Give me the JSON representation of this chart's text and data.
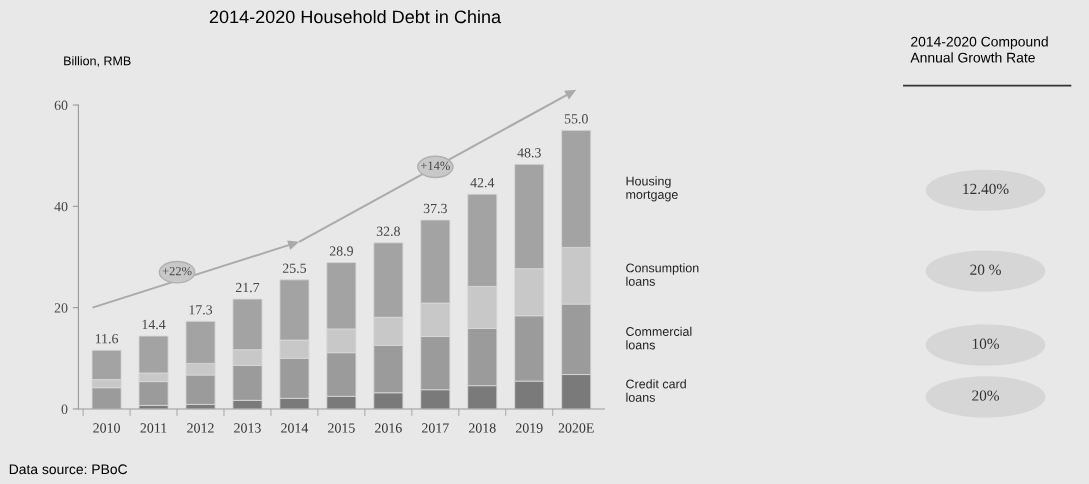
{
  "chart_data": {
    "type": "bar",
    "stacked": true,
    "title": "2014-2020 Household Debt in China",
    "ylabel": "Billion, RMB",
    "categories": [
      "2010",
      "2011",
      "2012",
      "2013",
      "2014",
      "2015",
      "2016",
      "2017",
      "2018",
      "2019",
      "2020E"
    ],
    "series": [
      {
        "name": "Credit card\nloans",
        "color": "#7a7a7a",
        "values": [
          0,
          0.7,
          0.9,
          1.7,
          2.1,
          2.5,
          3.2,
          3.8,
          4.6,
          5.5,
          6.8
        ]
      },
      {
        "name": "Commercial\nloans",
        "color": "#9b9b9b",
        "values": [
          4.2,
          4.7,
          5.8,
          6.9,
          7.9,
          8.6,
          9.4,
          10.5,
          11.3,
          12.9,
          13.9
        ]
      },
      {
        "name": "Consumption\nloans",
        "color": "#c8c8c8",
        "values": [
          1.6,
          1.7,
          2.3,
          3.1,
          3.6,
          4.7,
          5.5,
          6.6,
          8.3,
          9.3,
          11.2
        ]
      },
      {
        "name": "Housing\nmortgage",
        "color": "#a3a3a3",
        "values": [
          5.8,
          7.3,
          8.3,
          10.0,
          11.9,
          13.1,
          14.7,
          16.4,
          18.2,
          20.6,
          23.1
        ]
      }
    ],
    "totals": [
      "11.6",
      "14.4",
      "17.3",
      "21.7",
      "25.5",
      "28.9",
      "32.8",
      "37.3",
      "42.4",
      "48.3",
      "55.0"
    ],
    "ylim": [
      0,
      60
    ],
    "yticks": [
      0,
      20,
      40,
      60
    ],
    "annotations": [
      "+22%",
      "+14%",
      "2014-2020 Compound\nAnnual Growth Rate",
      "12.40%",
      "20 %",
      "10%",
      "20%",
      "Data source: PBoC"
    ]
  }
}
